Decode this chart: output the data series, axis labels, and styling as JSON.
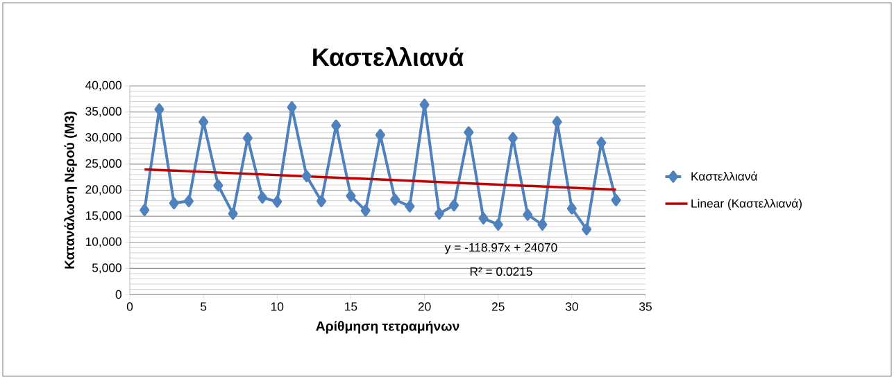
{
  "chart_data": {
    "type": "line",
    "title": "Καστελλιανά",
    "xlabel": "Αρίθμηση τετραμήνων",
    "ylabel": "Κατανάλωση Νερού (Μ3)",
    "x": [
      1,
      2,
      3,
      4,
      5,
      6,
      7,
      8,
      9,
      10,
      11,
      12,
      13,
      14,
      15,
      16,
      17,
      18,
      19,
      20,
      21,
      22,
      23,
      24,
      25,
      26,
      27,
      28,
      29,
      30,
      31,
      32,
      33
    ],
    "series": [
      {
        "name": "Καστελλιανά",
        "color": "#4f81bd",
        "marker": "diamond",
        "values": [
          16200,
          35500,
          17500,
          17900,
          33100,
          20900,
          15500,
          30000,
          18600,
          17800,
          35900,
          22700,
          17900,
          32400,
          18900,
          16100,
          30600,
          18200,
          16900,
          36400,
          15500,
          17100,
          31100,
          14600,
          13400,
          30000,
          15300,
          13400,
          33100,
          16500,
          12500,
          29100,
          18100
        ]
      },
      {
        "name": "Linear (Καστελλιανά)",
        "color": "#c00000",
        "marker": "none",
        "x": [
          1,
          33
        ],
        "values": [
          24000,
          20100
        ]
      }
    ],
    "xlim": [
      0,
      35
    ],
    "xticks": [
      0,
      5,
      10,
      15,
      20,
      25,
      30,
      35
    ],
    "ylim": [
      0,
      40000
    ],
    "yticks": [
      0,
      {
        "value": 5000,
        "label": "5,000"
      },
      {
        "value": 10000,
        "label": "10,000"
      },
      {
        "value": 15000,
        "label": "15,000"
      },
      {
        "value": 20000,
        "label": "20,000"
      },
      {
        "value": 25000,
        "label": "25,000"
      },
      {
        "value": 30000,
        "label": "30,000"
      },
      {
        "value": 35000,
        "label": "35,000"
      },
      {
        "value": 40000,
        "label": "40,000"
      }
    ],
    "grid": "y",
    "legend": "right",
    "line_style": "solid",
    "annotations": [
      "y = -118.97x + 24070",
      "R² = 0.0215"
    ]
  }
}
